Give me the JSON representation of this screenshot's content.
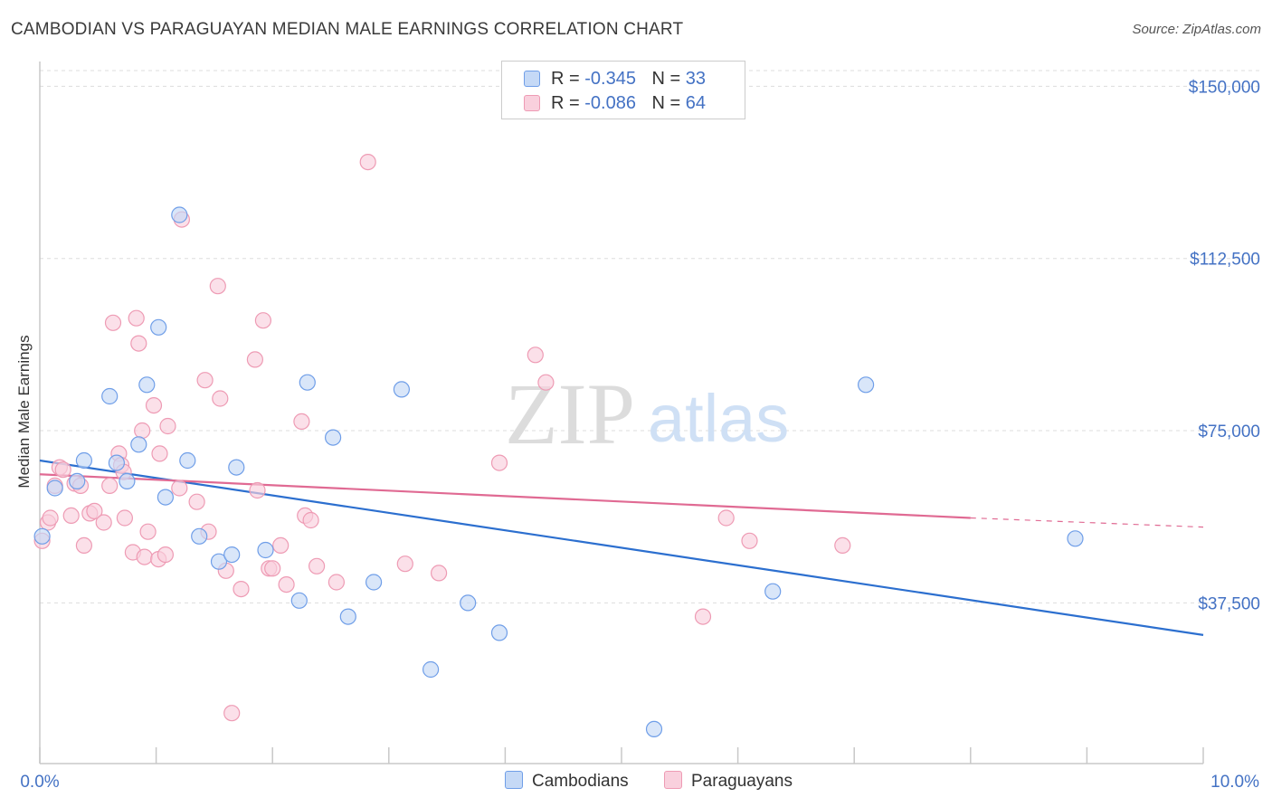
{
  "header": {
    "title": "CAMBODIAN VS PARAGUAYAN MEDIAN MALE EARNINGS CORRELATION CHART",
    "source": "Source: ZipAtlas.com"
  },
  "watermark": {
    "part1": "ZIP",
    "part2": "atlas"
  },
  "legend": {
    "rows": [
      {
        "r_label": "R =",
        "r_value": "-0.345",
        "n_label": "N =",
        "n_value": "33"
      },
      {
        "r_label": "R =",
        "r_value": "-0.086",
        "n_label": "N =",
        "n_value": "64"
      }
    ],
    "bottom": [
      {
        "label": "Cambodians"
      },
      {
        "label": "Paraguayans"
      }
    ]
  },
  "chart_data": {
    "type": "scatter",
    "title": "CAMBODIAN VS PARAGUAYAN MEDIAN MALE EARNINGS CORRELATION CHART",
    "xlabel": "",
    "ylabel": "Median Male Earnings",
    "xlim": [
      0,
      10
    ],
    "ylim": [
      2500,
      155000
    ],
    "x_tick_labels": [
      "0.0%",
      "10.0%"
    ],
    "y_ticks": [
      37500,
      75000,
      112500,
      150000
    ],
    "y_tick_labels": [
      "$37,500",
      "$75,000",
      "$112,500",
      "$150,000"
    ],
    "grid": true,
    "colors": {
      "cambodians": "#6f9ee8",
      "cambodians_fill": "#c5d9f6",
      "cambodians_line": "#2c6fcf",
      "paraguayans": "#ee9bb4",
      "paraguayans_fill": "#f9d0dd",
      "paraguayans_line": "#e06a93",
      "axis_text": "#4472c4"
    },
    "series": [
      {
        "name": "Cambodians",
        "points": [
          [
            0.02,
            52000
          ],
          [
            0.13,
            62500
          ],
          [
            0.32,
            64000
          ],
          [
            0.38,
            68500
          ],
          [
            0.6,
            82500
          ],
          [
            0.66,
            68000
          ],
          [
            0.75,
            64000
          ],
          [
            0.85,
            72000
          ],
          [
            0.92,
            85000
          ],
          [
            1.02,
            97500
          ],
          [
            1.08,
            60500
          ],
          [
            1.2,
            122000
          ],
          [
            1.27,
            68500
          ],
          [
            1.37,
            52000
          ],
          [
            1.54,
            46500
          ],
          [
            1.65,
            48000
          ],
          [
            1.69,
            67000
          ],
          [
            1.94,
            49000
          ],
          [
            2.23,
            38000
          ],
          [
            2.3,
            85500
          ],
          [
            2.52,
            73500
          ],
          [
            2.65,
            34500
          ],
          [
            2.87,
            42000
          ],
          [
            3.11,
            84000
          ],
          [
            3.36,
            23000
          ],
          [
            3.68,
            37500
          ],
          [
            3.95,
            31000
          ],
          [
            5.28,
            10000
          ],
          [
            6.3,
            40000
          ],
          [
            7.1,
            85000
          ],
          [
            8.9,
            51500
          ]
        ],
        "trend": {
          "x": [
            0,
            10
          ],
          "y": [
            68500,
            30500
          ]
        }
      },
      {
        "name": "Paraguayans",
        "points": [
          [
            0.02,
            51000
          ],
          [
            0.07,
            55000
          ],
          [
            0.09,
            56000
          ],
          [
            0.13,
            63000
          ],
          [
            0.17,
            67000
          ],
          [
            0.2,
            66500
          ],
          [
            0.27,
            56500
          ],
          [
            0.3,
            63500
          ],
          [
            0.35,
            63000
          ],
          [
            0.38,
            50000
          ],
          [
            0.43,
            57000
          ],
          [
            0.47,
            57500
          ],
          [
            0.6,
            63000
          ],
          [
            0.55,
            55000
          ],
          [
            0.63,
            98500
          ],
          [
            0.68,
            70000
          ],
          [
            0.7,
            67500
          ],
          [
            0.72,
            66000
          ],
          [
            0.73,
            56000
          ],
          [
            0.8,
            48500
          ],
          [
            0.85,
            94000
          ],
          [
            0.83,
            99500
          ],
          [
            0.88,
            75000
          ],
          [
            0.9,
            47500
          ],
          [
            0.93,
            53000
          ],
          [
            0.98,
            80500
          ],
          [
            1.02,
            47000
          ],
          [
            1.03,
            70000
          ],
          [
            1.08,
            48000
          ],
          [
            1.1,
            76000
          ],
          [
            1.2,
            62500
          ],
          [
            1.22,
            121000
          ],
          [
            1.35,
            59500
          ],
          [
            1.42,
            86000
          ],
          [
            1.45,
            53000
          ],
          [
            1.55,
            82000
          ],
          [
            1.53,
            106500
          ],
          [
            1.6,
            44500
          ],
          [
            1.73,
            40500
          ],
          [
            1.85,
            90500
          ],
          [
            1.87,
            62000
          ],
          [
            1.92,
            99000
          ],
          [
            1.97,
            45000
          ],
          [
            2.0,
            45000
          ],
          [
            2.07,
            50000
          ],
          [
            2.12,
            41500
          ],
          [
            2.25,
            77000
          ],
          [
            2.28,
            56500
          ],
          [
            2.33,
            55500
          ],
          [
            2.38,
            45500
          ],
          [
            2.55,
            42000
          ],
          [
            2.82,
            133500
          ],
          [
            3.14,
            46000
          ],
          [
            3.43,
            44000
          ],
          [
            3.95,
            68000
          ],
          [
            4.26,
            91500
          ],
          [
            4.35,
            85500
          ],
          [
            5.7,
            34500
          ],
          [
            5.9,
            56000
          ],
          [
            6.1,
            51000
          ],
          [
            6.9,
            50000
          ],
          [
            1.65,
            13500
          ]
        ],
        "trend": {
          "x": [
            0,
            8
          ],
          "y": [
            65500,
            56000
          ]
        },
        "trend_ext": {
          "x": [
            8,
            10
          ],
          "y": [
            56000,
            54000
          ]
        }
      }
    ]
  }
}
